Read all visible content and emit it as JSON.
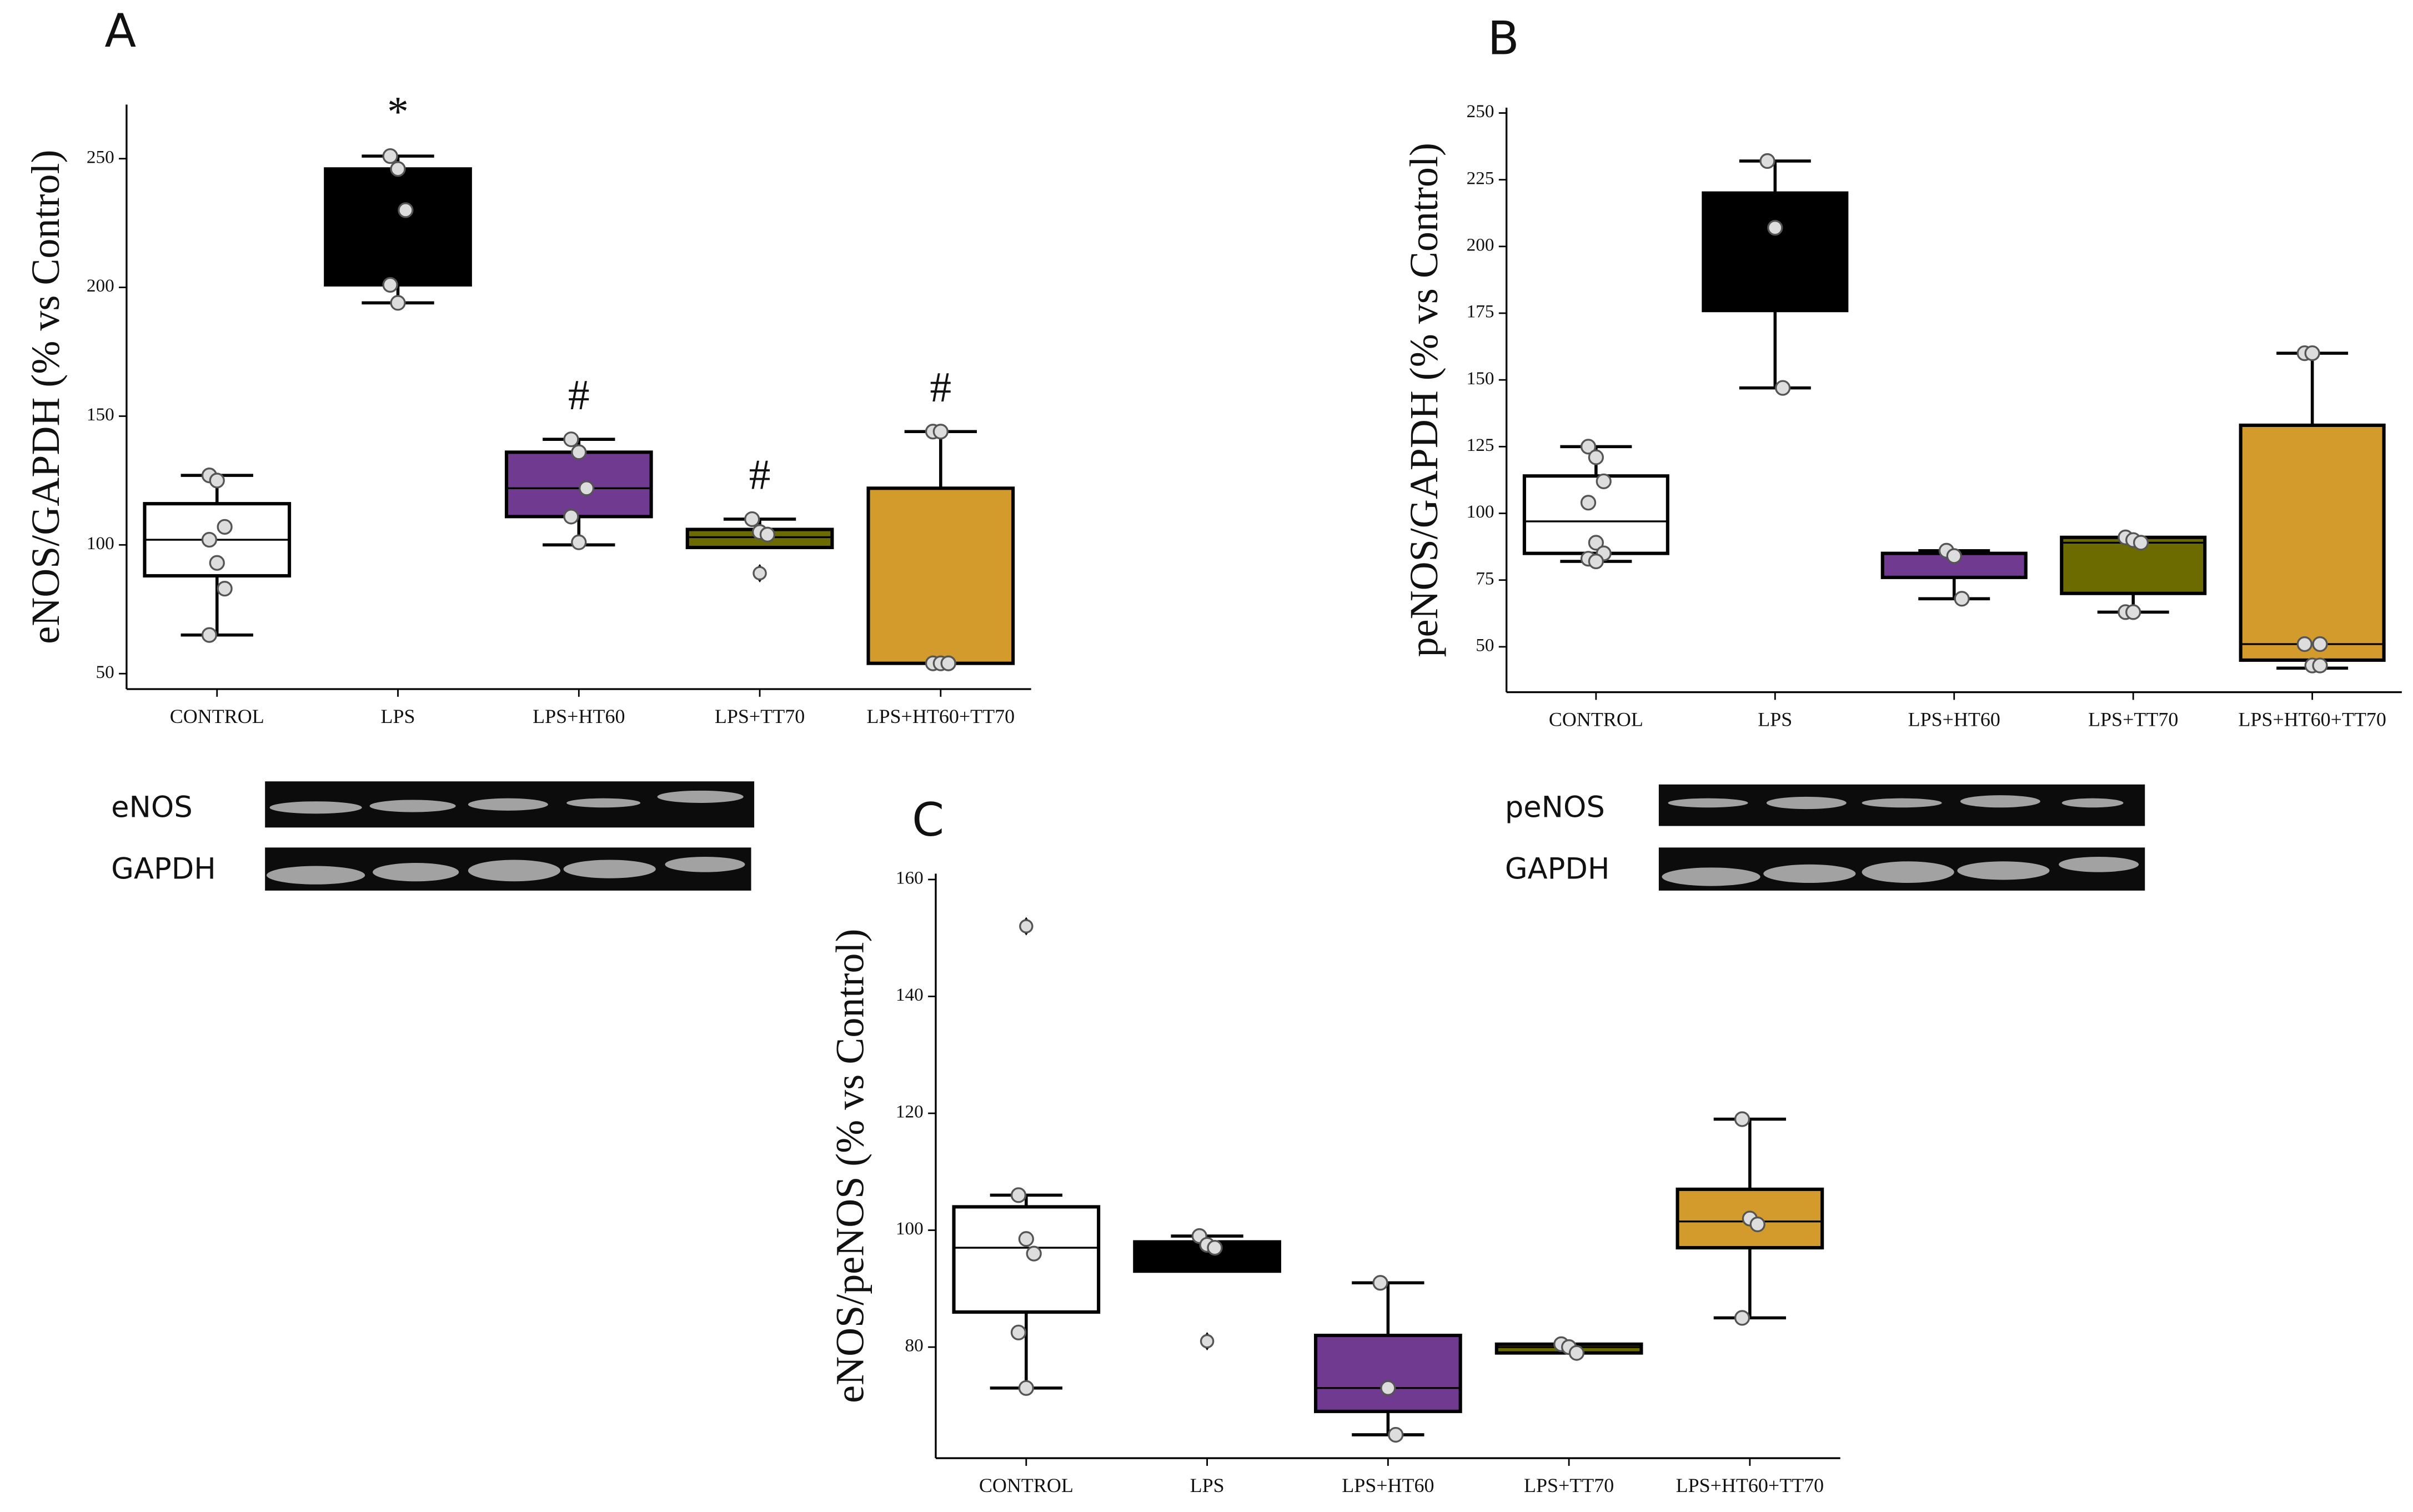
{
  "chart_data": [
    {
      "type": "box",
      "panel": "A",
      "ylabel": "eNOS/GAPDH (% vs Control)",
      "categories": [
        "CONTROL",
        "LPS",
        "LPS+HT60",
        "LPS+TT70",
        "LPS+HT60+TT70"
      ],
      "colors": [
        "#ffffff",
        "#000000",
        "#6f3a8f",
        "#6b6b00",
        "#d39b2b"
      ],
      "boxes": [
        {
          "min": 65,
          "q1": 88,
          "median": 102,
          "q3": 116,
          "max": 127,
          "points": [
            127,
            125,
            107,
            102,
            93,
            83,
            65
          ],
          "outliers": []
        },
        {
          "min": 194,
          "q1": 201,
          "median": 230,
          "q3": 246,
          "max": 251,
          "points": [
            251,
            246,
            230,
            201,
            194
          ],
          "outliers": []
        },
        {
          "min": 100,
          "q1": 111,
          "median": 122,
          "q3": 136,
          "max": 141,
          "points": [
            141,
            136,
            122,
            111,
            101
          ],
          "outliers": []
        },
        {
          "min": 99,
          "q1": 99,
          "median": 103,
          "q3": 106,
          "max": 110,
          "points": [
            110,
            105,
            104
          ],
          "outliers": [
            89
          ]
        },
        {
          "min": 54,
          "q1": 54,
          "median": 54,
          "q3": 122,
          "max": 144,
          "points": [
            144,
            144,
            54,
            54,
            54,
            54
          ],
          "outliers": []
        }
      ],
      "annotations": [
        {
          "text": "*",
          "category": "LPS"
        },
        {
          "text": "#",
          "category": "LPS+HT60"
        },
        {
          "text": "#",
          "category": "LPS+TT70"
        },
        {
          "text": "#",
          "category": "LPS+HT60+TT70"
        }
      ],
      "ylim": [
        44,
        271
      ],
      "yticks": [
        50,
        100,
        150,
        200,
        250
      ]
    },
    {
      "type": "box",
      "panel": "B",
      "ylabel": "peNOS/GAPDH (% vs Control)",
      "categories": [
        "CONTROL",
        "LPS",
        "LPS+HT60",
        "LPS+TT70",
        "LPS+HT60+TT70"
      ],
      "colors": [
        "#ffffff",
        "#000000",
        "#6f3a8f",
        "#6b6b00",
        "#d39b2b"
      ],
      "boxes": [
        {
          "min": 82,
          "q1": 85,
          "median": 97,
          "q3": 114,
          "max": 125,
          "points": [
            125,
            121,
            112,
            104,
            89,
            85,
            83,
            82
          ],
          "outliers": []
        },
        {
          "min": 147,
          "q1": 176,
          "median": 207,
          "q3": 220,
          "max": 232,
          "points": [
            232,
            207,
            147
          ],
          "outliers": []
        },
        {
          "min": 68,
          "q1": 76,
          "median": 85,
          "q3": 85,
          "max": 86,
          "points": [
            86,
            84,
            68
          ],
          "outliers": []
        },
        {
          "min": 63,
          "q1": 70,
          "median": 89,
          "q3": 91,
          "max": 91,
          "points": [
            91,
            90,
            89,
            63,
            63
          ],
          "outliers": []
        },
        {
          "min": 42,
          "q1": 45,
          "median": 51,
          "q3": 133,
          "max": 160,
          "points": [
            160,
            160,
            51,
            51,
            43,
            43
          ],
          "outliers": []
        }
      ],
      "annotations": [],
      "ylim": [
        33,
        252
      ],
      "yticks": [
        50,
        75,
        100,
        125,
        150,
        175,
        200,
        225,
        250
      ]
    },
    {
      "type": "box",
      "panel": "C",
      "ylabel": "eNOS/peNOS (% vs Control)",
      "categories": [
        "CONTROL",
        "LPS",
        "LPS+HT60",
        "LPS+TT70",
        "LPS+HT60+TT70"
      ],
      "colors": [
        "#ffffff",
        "#000000",
        "#6f3a8f",
        "#6b6b00",
        "#d39b2b"
      ],
      "boxes": [
        {
          "min": 73,
          "q1": 86,
          "median": 97,
          "q3": 104,
          "max": 106,
          "points": [
            106,
            98.5,
            96,
            82.5,
            73
          ],
          "outliers": [
            152
          ]
        },
        {
          "min": 93,
          "q1": 93,
          "median": 97,
          "q3": 98,
          "max": 99,
          "points": [
            99,
            97.5,
            97
          ],
          "outliers": [
            81
          ]
        },
        {
          "min": 65,
          "q1": 69,
          "median": 73,
          "q3": 82,
          "max": 91,
          "points": [
            91,
            73,
            65
          ],
          "outliers": []
        },
        {
          "min": 79,
          "q1": 79,
          "median": 80,
          "q3": 80.5,
          "max": 80.5,
          "points": [
            80.5,
            80,
            79
          ],
          "outliers": []
        },
        {
          "min": 85,
          "q1": 97,
          "median": 101.5,
          "q3": 107,
          "max": 119,
          "points": [
            119,
            102,
            101,
            85
          ],
          "outliers": []
        }
      ],
      "annotations": [],
      "ylim": [
        61,
        161
      ],
      "yticks": [
        80,
        100,
        120,
        140,
        160
      ]
    }
  ],
  "blots": [
    {
      "labels": [
        "eNOS",
        "GAPDH"
      ]
    },
    {
      "labels": [
        "peNOS",
        "GAPDH"
      ]
    }
  ]
}
